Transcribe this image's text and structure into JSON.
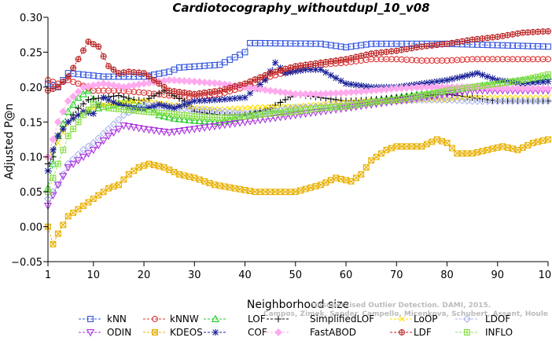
{
  "chart_data": {
    "type": "line",
    "title": "Cardiotocography_withoutdupl_10_v08",
    "xlabel": "Neighborhood size",
    "ylabel": "Adjusted P@n",
    "xlim": [
      1,
      100
    ],
    "ylim": [
      -0.05,
      0.3
    ],
    "x_ticks": [
      1,
      10,
      20,
      30,
      40,
      50,
      60,
      70,
      80,
      90,
      100
    ],
    "y_ticks": [
      -0.05,
      0.0,
      0.05,
      0.1,
      0.15,
      0.2,
      0.25,
      0.3
    ],
    "x_tick_labels": [
      "1",
      "10",
      "20",
      "30",
      "40",
      "50",
      "60",
      "70",
      "80",
      "90",
      "100"
    ],
    "y_tick_labels": [
      "−0.05",
      "0.00",
      "0.05",
      "0.10",
      "0.15",
      "0.20",
      "0.25",
      "0.30"
    ],
    "legend_position": "bottom",
    "watermark": [
      "Campos, Zimek, Sander, Campello, Micenkova, Schubert, Assent, Houle",
      "Unsupervised Outlier Detection. DAMI, 2015."
    ],
    "series": [
      {
        "name": "kNN",
        "color": "#3355dd",
        "marker": "square",
        "keypoints": [
          [
            1,
            0.205
          ],
          [
            3,
            0.2
          ],
          [
            5,
            0.22
          ],
          [
            12,
            0.215
          ],
          [
            20,
            0.215
          ],
          [
            25,
            0.222
          ],
          [
            27,
            0.228
          ],
          [
            35,
            0.232
          ],
          [
            40,
            0.25
          ],
          [
            41,
            0.263
          ],
          [
            43,
            0.263
          ],
          [
            55,
            0.262
          ],
          [
            60,
            0.257
          ],
          [
            65,
            0.262
          ],
          [
            80,
            0.262
          ],
          [
            90,
            0.26
          ],
          [
            100,
            0.258
          ]
        ]
      },
      {
        "name": "kNNW",
        "color": "#dd3333",
        "marker": "circle",
        "keypoints": [
          [
            1,
            0.21
          ],
          [
            3,
            0.205
          ],
          [
            5,
            0.21
          ],
          [
            7,
            0.205
          ],
          [
            10,
            0.195
          ],
          [
            15,
            0.195
          ],
          [
            20,
            0.192
          ],
          [
            25,
            0.188
          ],
          [
            30,
            0.185
          ],
          [
            35,
            0.19
          ],
          [
            40,
            0.2
          ],
          [
            45,
            0.215
          ],
          [
            50,
            0.225
          ],
          [
            55,
            0.232
          ],
          [
            60,
            0.235
          ],
          [
            65,
            0.24
          ],
          [
            70,
            0.24
          ],
          [
            75,
            0.238
          ],
          [
            80,
            0.238
          ],
          [
            85,
            0.24
          ],
          [
            90,
            0.24
          ],
          [
            100,
            0.24
          ]
        ]
      },
      {
        "name": "LOF",
        "color": "#22cc22",
        "marker": "triangle",
        "keypoints": [
          [
            1,
            0.055
          ],
          [
            2,
            0.09
          ],
          [
            3,
            0.13
          ],
          [
            5,
            0.165
          ],
          [
            7,
            0.185
          ],
          [
            9,
            0.195
          ],
          [
            11,
            0.17
          ],
          [
            14,
            0.175
          ],
          [
            17,
            0.18
          ],
          [
            20,
            0.172
          ],
          [
            23,
            0.16
          ],
          [
            26,
            0.155
          ],
          [
            30,
            0.152
          ],
          [
            35,
            0.15
          ],
          [
            40,
            0.158
          ],
          [
            45,
            0.168
          ],
          [
            50,
            0.17
          ],
          [
            55,
            0.172
          ],
          [
            60,
            0.175
          ],
          [
            65,
            0.18
          ],
          [
            70,
            0.185
          ],
          [
            75,
            0.19
          ],
          [
            80,
            0.195
          ],
          [
            85,
            0.2
          ],
          [
            90,
            0.205
          ],
          [
            95,
            0.21
          ],
          [
            100,
            0.215
          ]
        ]
      },
      {
        "name": "SimplifiedLOF",
        "color": "#111111",
        "marker": "plus",
        "keypoints": [
          [
            1,
            0.09
          ],
          [
            2,
            0.1
          ],
          [
            3,
            0.13
          ],
          [
            5,
            0.15
          ],
          [
            7,
            0.17
          ],
          [
            9,
            0.182
          ],
          [
            12,
            0.185
          ],
          [
            15,
            0.188
          ],
          [
            18,
            0.182
          ],
          [
            20,
            0.18
          ],
          [
            24,
            0.195
          ],
          [
            28,
            0.18
          ],
          [
            30,
            0.165
          ],
          [
            35,
            0.16
          ],
          [
            40,
            0.16
          ],
          [
            45,
            0.17
          ],
          [
            50,
            0.19
          ],
          [
            55,
            0.185
          ],
          [
            60,
            0.18
          ],
          [
            65,
            0.182
          ],
          [
            70,
            0.185
          ],
          [
            75,
            0.188
          ],
          [
            80,
            0.19
          ],
          [
            85,
            0.185
          ],
          [
            90,
            0.18
          ],
          [
            100,
            0.18
          ]
        ]
      },
      {
        "name": "LoOP",
        "color": "#ffe000",
        "marker": "x",
        "keypoints": [
          [
            1,
            0.1
          ],
          [
            3,
            0.12
          ],
          [
            5,
            0.15
          ],
          [
            8,
            0.165
          ],
          [
            12,
            0.175
          ],
          [
            16,
            0.178
          ],
          [
            20,
            0.18
          ],
          [
            25,
            0.175
          ],
          [
            30,
            0.17
          ],
          [
            35,
            0.168
          ],
          [
            40,
            0.17
          ],
          [
            45,
            0.172
          ],
          [
            50,
            0.172
          ],
          [
            55,
            0.175
          ],
          [
            60,
            0.178
          ],
          [
            65,
            0.18
          ],
          [
            70,
            0.18
          ],
          [
            75,
            0.182
          ],
          [
            80,
            0.182
          ],
          [
            85,
            0.185
          ],
          [
            90,
            0.185
          ],
          [
            100,
            0.185
          ]
        ]
      },
      {
        "name": "LDOF",
        "color": "#aab4ee",
        "marker": "diamond",
        "keypoints": [
          [
            1,
            0.04
          ],
          [
            3,
            0.06
          ],
          [
            5,
            0.09
          ],
          [
            8,
            0.11
          ],
          [
            10,
            0.12
          ],
          [
            13,
            0.14
          ],
          [
            16,
            0.16
          ],
          [
            20,
            0.175
          ],
          [
            25,
            0.172
          ],
          [
            30,
            0.168
          ],
          [
            35,
            0.165
          ],
          [
            40,
            0.162
          ],
          [
            45,
            0.165
          ],
          [
            50,
            0.17
          ],
          [
            55,
            0.172
          ],
          [
            60,
            0.175
          ],
          [
            65,
            0.178
          ],
          [
            70,
            0.18
          ],
          [
            75,
            0.182
          ],
          [
            80,
            0.182
          ],
          [
            85,
            0.18
          ],
          [
            90,
            0.18
          ],
          [
            100,
            0.18
          ]
        ]
      },
      {
        "name": "ODIN",
        "color": "#aa33dd",
        "marker": "invtriangle",
        "keypoints": [
          [
            1,
            0.03
          ],
          [
            3,
            0.06
          ],
          [
            5,
            0.085
          ],
          [
            8,
            0.1
          ],
          [
            10,
            0.11
          ],
          [
            13,
            0.13
          ],
          [
            16,
            0.145
          ],
          [
            20,
            0.14
          ],
          [
            25,
            0.135
          ],
          [
            30,
            0.14
          ],
          [
            35,
            0.145
          ],
          [
            40,
            0.15
          ],
          [
            45,
            0.155
          ],
          [
            50,
            0.16
          ],
          [
            55,
            0.165
          ],
          [
            60,
            0.17
          ],
          [
            65,
            0.175
          ],
          [
            70,
            0.18
          ],
          [
            75,
            0.185
          ],
          [
            80,
            0.19
          ],
          [
            85,
            0.195
          ],
          [
            90,
            0.195
          ],
          [
            100,
            0.195
          ]
        ]
      },
      {
        "name": "KDEOS",
        "color": "#e8b000",
        "marker": "boxx",
        "keypoints": [
          [
            1,
            0.0
          ],
          [
            2,
            -0.025
          ],
          [
            3,
            -0.01
          ],
          [
            5,
            0.015
          ],
          [
            8,
            0.03
          ],
          [
            11,
            0.045
          ],
          [
            13,
            0.055
          ],
          [
            15,
            0.06
          ],
          [
            17,
            0.075
          ],
          [
            19,
            0.085
          ],
          [
            21,
            0.09
          ],
          [
            24,
            0.085
          ],
          [
            27,
            0.075
          ],
          [
            30,
            0.07
          ],
          [
            34,
            0.06
          ],
          [
            38,
            0.055
          ],
          [
            42,
            0.05
          ],
          [
            46,
            0.05
          ],
          [
            50,
            0.05
          ],
          [
            55,
            0.06
          ],
          [
            58,
            0.07
          ],
          [
            61,
            0.065
          ],
          [
            63,
            0.075
          ],
          [
            65,
            0.095
          ],
          [
            68,
            0.11
          ],
          [
            70,
            0.115
          ],
          [
            75,
            0.115
          ],
          [
            78,
            0.125
          ],
          [
            80,
            0.12
          ],
          [
            82,
            0.105
          ],
          [
            85,
            0.105
          ],
          [
            88,
            0.11
          ],
          [
            91,
            0.115
          ],
          [
            94,
            0.11
          ],
          [
            97,
            0.12
          ],
          [
            100,
            0.125
          ]
        ]
      },
      {
        "name": "COF",
        "color": "#1a2299",
        "marker": "asterisk",
        "keypoints": [
          [
            1,
            0.08
          ],
          [
            2,
            0.11
          ],
          [
            3,
            0.13
          ],
          [
            5,
            0.15
          ],
          [
            8,
            0.165
          ],
          [
            10,
            0.162
          ],
          [
            12,
            0.185
          ],
          [
            15,
            0.175
          ],
          [
            18,
            0.17
          ],
          [
            20,
            0.168
          ],
          [
            23,
            0.175
          ],
          [
            26,
            0.17
          ],
          [
            30,
            0.18
          ],
          [
            35,
            0.182
          ],
          [
            40,
            0.185
          ],
          [
            44,
            0.21
          ],
          [
            46,
            0.235
          ],
          [
            48,
            0.22
          ],
          [
            52,
            0.225
          ],
          [
            55,
            0.225
          ],
          [
            60,
            0.205
          ],
          [
            65,
            0.2
          ],
          [
            70,
            0.2
          ],
          [
            75,
            0.205
          ],
          [
            80,
            0.21
          ],
          [
            83,
            0.215
          ],
          [
            86,
            0.22
          ],
          [
            90,
            0.21
          ],
          [
            95,
            0.205
          ],
          [
            100,
            0.208
          ]
        ]
      },
      {
        "name": "FastABOD",
        "color": "#ffaaee",
        "marker": "diamondfill",
        "keypoints": [
          [
            1,
            0.1
          ],
          [
            3,
            0.15
          ],
          [
            5,
            0.18
          ],
          [
            8,
            0.2
          ],
          [
            12,
            0.205
          ],
          [
            16,
            0.2
          ],
          [
            20,
            0.205
          ],
          [
            25,
            0.21
          ],
          [
            30,
            0.208
          ],
          [
            35,
            0.205
          ],
          [
            40,
            0.2
          ],
          [
            45,
            0.195
          ],
          [
            50,
            0.19
          ],
          [
            55,
            0.19
          ],
          [
            60,
            0.192
          ],
          [
            65,
            0.195
          ],
          [
            70,
            0.198
          ],
          [
            75,
            0.2
          ],
          [
            80,
            0.2
          ],
          [
            85,
            0.2
          ],
          [
            90,
            0.198
          ],
          [
            100,
            0.198
          ]
        ]
      },
      {
        "name": "LDF",
        "color": "#bb2222",
        "marker": "circleplus",
        "keypoints": [
          [
            1,
            0.195
          ],
          [
            3,
            0.2
          ],
          [
            5,
            0.215
          ],
          [
            7,
            0.24
          ],
          [
            9,
            0.265
          ],
          [
            11,
            0.258
          ],
          [
            13,
            0.23
          ],
          [
            15,
            0.22
          ],
          [
            17,
            0.222
          ],
          [
            20,
            0.22
          ],
          [
            25,
            0.195
          ],
          [
            30,
            0.19
          ],
          [
            35,
            0.195
          ],
          [
            40,
            0.205
          ],
          [
            45,
            0.22
          ],
          [
            50,
            0.23
          ],
          [
            55,
            0.235
          ],
          [
            60,
            0.24
          ],
          [
            65,
            0.248
          ],
          [
            70,
            0.252
          ],
          [
            75,
            0.258
          ],
          [
            80,
            0.262
          ],
          [
            85,
            0.268
          ],
          [
            90,
            0.272
          ],
          [
            95,
            0.278
          ],
          [
            100,
            0.28
          ]
        ]
      },
      {
        "name": "INFLO",
        "color": "#88dd44",
        "marker": "boxplus",
        "keypoints": [
          [
            1,
            0.05
          ],
          [
            3,
            0.09
          ],
          [
            5,
            0.13
          ],
          [
            8,
            0.16
          ],
          [
            10,
            0.175
          ],
          [
            13,
            0.17
          ],
          [
            16,
            0.168
          ],
          [
            20,
            0.165
          ],
          [
            25,
            0.162
          ],
          [
            30,
            0.158
          ],
          [
            35,
            0.156
          ],
          [
            40,
            0.158
          ],
          [
            45,
            0.162
          ],
          [
            50,
            0.165
          ],
          [
            55,
            0.17
          ],
          [
            60,
            0.172
          ],
          [
            65,
            0.178
          ],
          [
            70,
            0.182
          ],
          [
            75,
            0.188
          ],
          [
            80,
            0.195
          ],
          [
            85,
            0.2
          ],
          [
            90,
            0.205
          ],
          [
            95,
            0.21
          ],
          [
            100,
            0.218
          ]
        ]
      }
    ]
  }
}
